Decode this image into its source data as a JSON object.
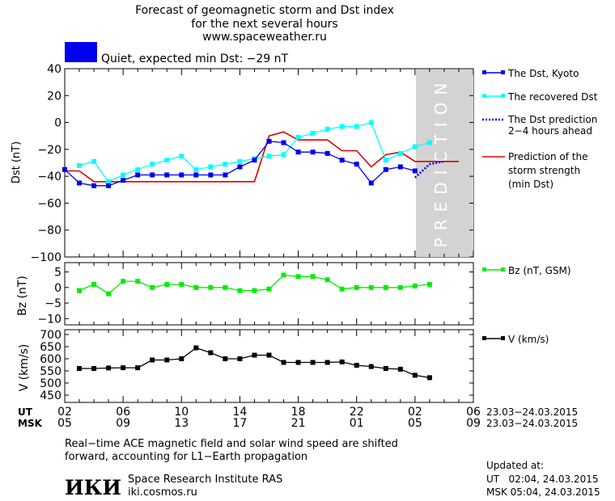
{
  "header": {
    "title_line1": "Forecast of geomagnetic storm and Dst index",
    "title_line2": "for the next several hours",
    "url": "www.spaceweather.ru",
    "status": "Quiet, expected min Dst: −29 nT",
    "status_color": "#0000ee"
  },
  "prediction_band_label": "PREDICTION",
  "time_axis": {
    "ut_label": "UT",
    "msk_label": "MSK",
    "ut_ticks": [
      "02",
      "06",
      "10",
      "14",
      "18",
      "22",
      "02",
      "06"
    ],
    "msk_ticks": [
      "05",
      "09",
      "13",
      "17",
      "21",
      "01",
      "05",
      "09"
    ],
    "ut_date_range": "23.03−24.03.2015",
    "msk_date_range": "23.03−24.03.2015"
  },
  "chart_data": [
    {
      "type": "line",
      "ylabel": "Dst (nT)",
      "ylim": [
        -100,
        40
      ],
      "yticks": [
        40,
        20,
        0,
        -20,
        -40,
        -60,
        -80,
        -100
      ],
      "x_unit": "hours from 02 UT 23.03.2015",
      "xlim": [
        0,
        28
      ],
      "prediction_region": [
        24,
        28
      ],
      "series": [
        {
          "name": "The Dst, Kyoto",
          "color": "#0000ee",
          "marker": "square",
          "x": [
            0,
            1,
            2,
            3,
            4,
            5,
            6,
            7,
            8,
            9,
            10,
            11,
            12,
            13,
            14,
            15,
            16,
            17,
            18,
            19,
            20,
            21,
            22,
            23,
            24
          ],
          "values": [
            -35,
            -45,
            -47,
            -47,
            -43,
            -39,
            -39,
            -39,
            -39,
            -39,
            -39,
            -39,
            -33,
            -28,
            -14,
            -15,
            -22,
            -22,
            -23,
            -28,
            -31,
            -45,
            -35,
            -33,
            -36
          ]
        },
        {
          "name": "The recovered Dst",
          "color": "#00ffff",
          "marker": "square",
          "x": [
            1,
            2,
            3,
            4,
            5,
            6,
            7,
            8,
            9,
            10,
            11,
            12,
            13,
            14,
            15,
            16,
            17,
            18,
            19,
            20,
            21,
            22,
            23,
            24,
            25
          ],
          "values": [
            -32,
            -29,
            -44,
            -39,
            -35,
            -31,
            -28,
            -25,
            -35,
            -33,
            -31,
            -29,
            -27,
            -25,
            -24,
            -11,
            -8,
            -5,
            -3,
            -3,
            0,
            -28,
            -23,
            -18,
            -15
          ]
        },
        {
          "name": "The Dst prediction 2−4 hours ahead",
          "color": "#0000ee",
          "style": "dotted",
          "x": [
            24,
            25,
            26
          ],
          "values": [
            -41,
            -31,
            -29
          ]
        },
        {
          "name": "Prediction of the storm strength (min Dst)",
          "color": "#dd0000",
          "x": [
            0,
            1,
            2,
            3,
            4,
            5,
            6,
            7,
            8,
            9,
            10,
            11,
            12,
            13,
            14,
            15,
            16,
            17,
            18,
            19,
            20,
            21,
            22,
            23,
            24,
            25,
            26,
            27
          ],
          "values": [
            -36,
            -36,
            -44,
            -44,
            -44,
            -44,
            -44,
            -44,
            -44,
            -44,
            -44,
            -44,
            -44,
            -44,
            -10,
            -7,
            -13,
            -13,
            -13,
            -21,
            -21,
            -33,
            -24,
            -22,
            -29,
            -29,
            -29,
            -29
          ]
        }
      ],
      "legend": [
        {
          "line1": "The Dst, Kyoto",
          "line2": "",
          "line3": ""
        },
        {
          "line1": "The recovered Dst",
          "line2": "",
          "line3": ""
        },
        {
          "line1": "The Dst prediction",
          "line2": "2−4 hours ahead",
          "line3": ""
        },
        {
          "line1": "Prediction of the",
          "line2": "storm strength",
          "line3": "(min Dst)"
        }
      ]
    },
    {
      "type": "line",
      "ylabel": "Bz (nT)",
      "ylim": [
        -12,
        8
      ],
      "yticks": [
        5,
        0,
        -5,
        -10
      ],
      "series": [
        {
          "name": "Bz (nT, GSM)",
          "color": "#00ee00",
          "x": [
            1,
            2,
            3,
            4,
            5,
            6,
            7,
            8,
            9,
            10,
            11,
            12,
            13,
            14,
            15,
            16,
            17,
            18,
            19,
            20,
            21,
            22,
            23,
            24,
            25
          ],
          "values": [
            -1,
            1,
            -2,
            2,
            2,
            0,
            1,
            1,
            0,
            0,
            0,
            -1,
            -1,
            -0.5,
            4,
            3.5,
            3.5,
            2.5,
            -0.5,
            0,
            0,
            0,
            0,
            0.5,
            1
          ]
        }
      ]
    },
    {
      "type": "line",
      "ylabel": "V (km/s)",
      "ylim": [
        420,
        720
      ],
      "yticks": [
        700,
        650,
        600,
        550,
        500,
        450
      ],
      "series": [
        {
          "name": "V (km/s)",
          "color": "#000000",
          "x": [
            1,
            2,
            3,
            4,
            5,
            6,
            7,
            8,
            9,
            10,
            11,
            12,
            13,
            14,
            15,
            16,
            17,
            18,
            19,
            20,
            21,
            22,
            23,
            24,
            25
          ],
          "values": [
            560,
            560,
            562,
            563,
            563,
            595,
            595,
            600,
            645,
            625,
            600,
            600,
            615,
            615,
            585,
            585,
            585,
            585,
            587,
            573,
            568,
            560,
            557,
            532,
            522
          ]
        }
      ]
    }
  ],
  "footer": {
    "note_line1": "Real−time ACE magnetic field and solar wind speed are shifted",
    "note_line2": "forward, accounting for L1−Earth propagation",
    "logo": "ИКИ",
    "institute": "Space Research Institute RAS",
    "institute_url": "iki.cosmos.ru",
    "updated_label": "Updated at:",
    "updated_ut": "UT   02:04, 24.03.2015",
    "updated_msk": "MSK 05:04, 24.03.2015"
  }
}
